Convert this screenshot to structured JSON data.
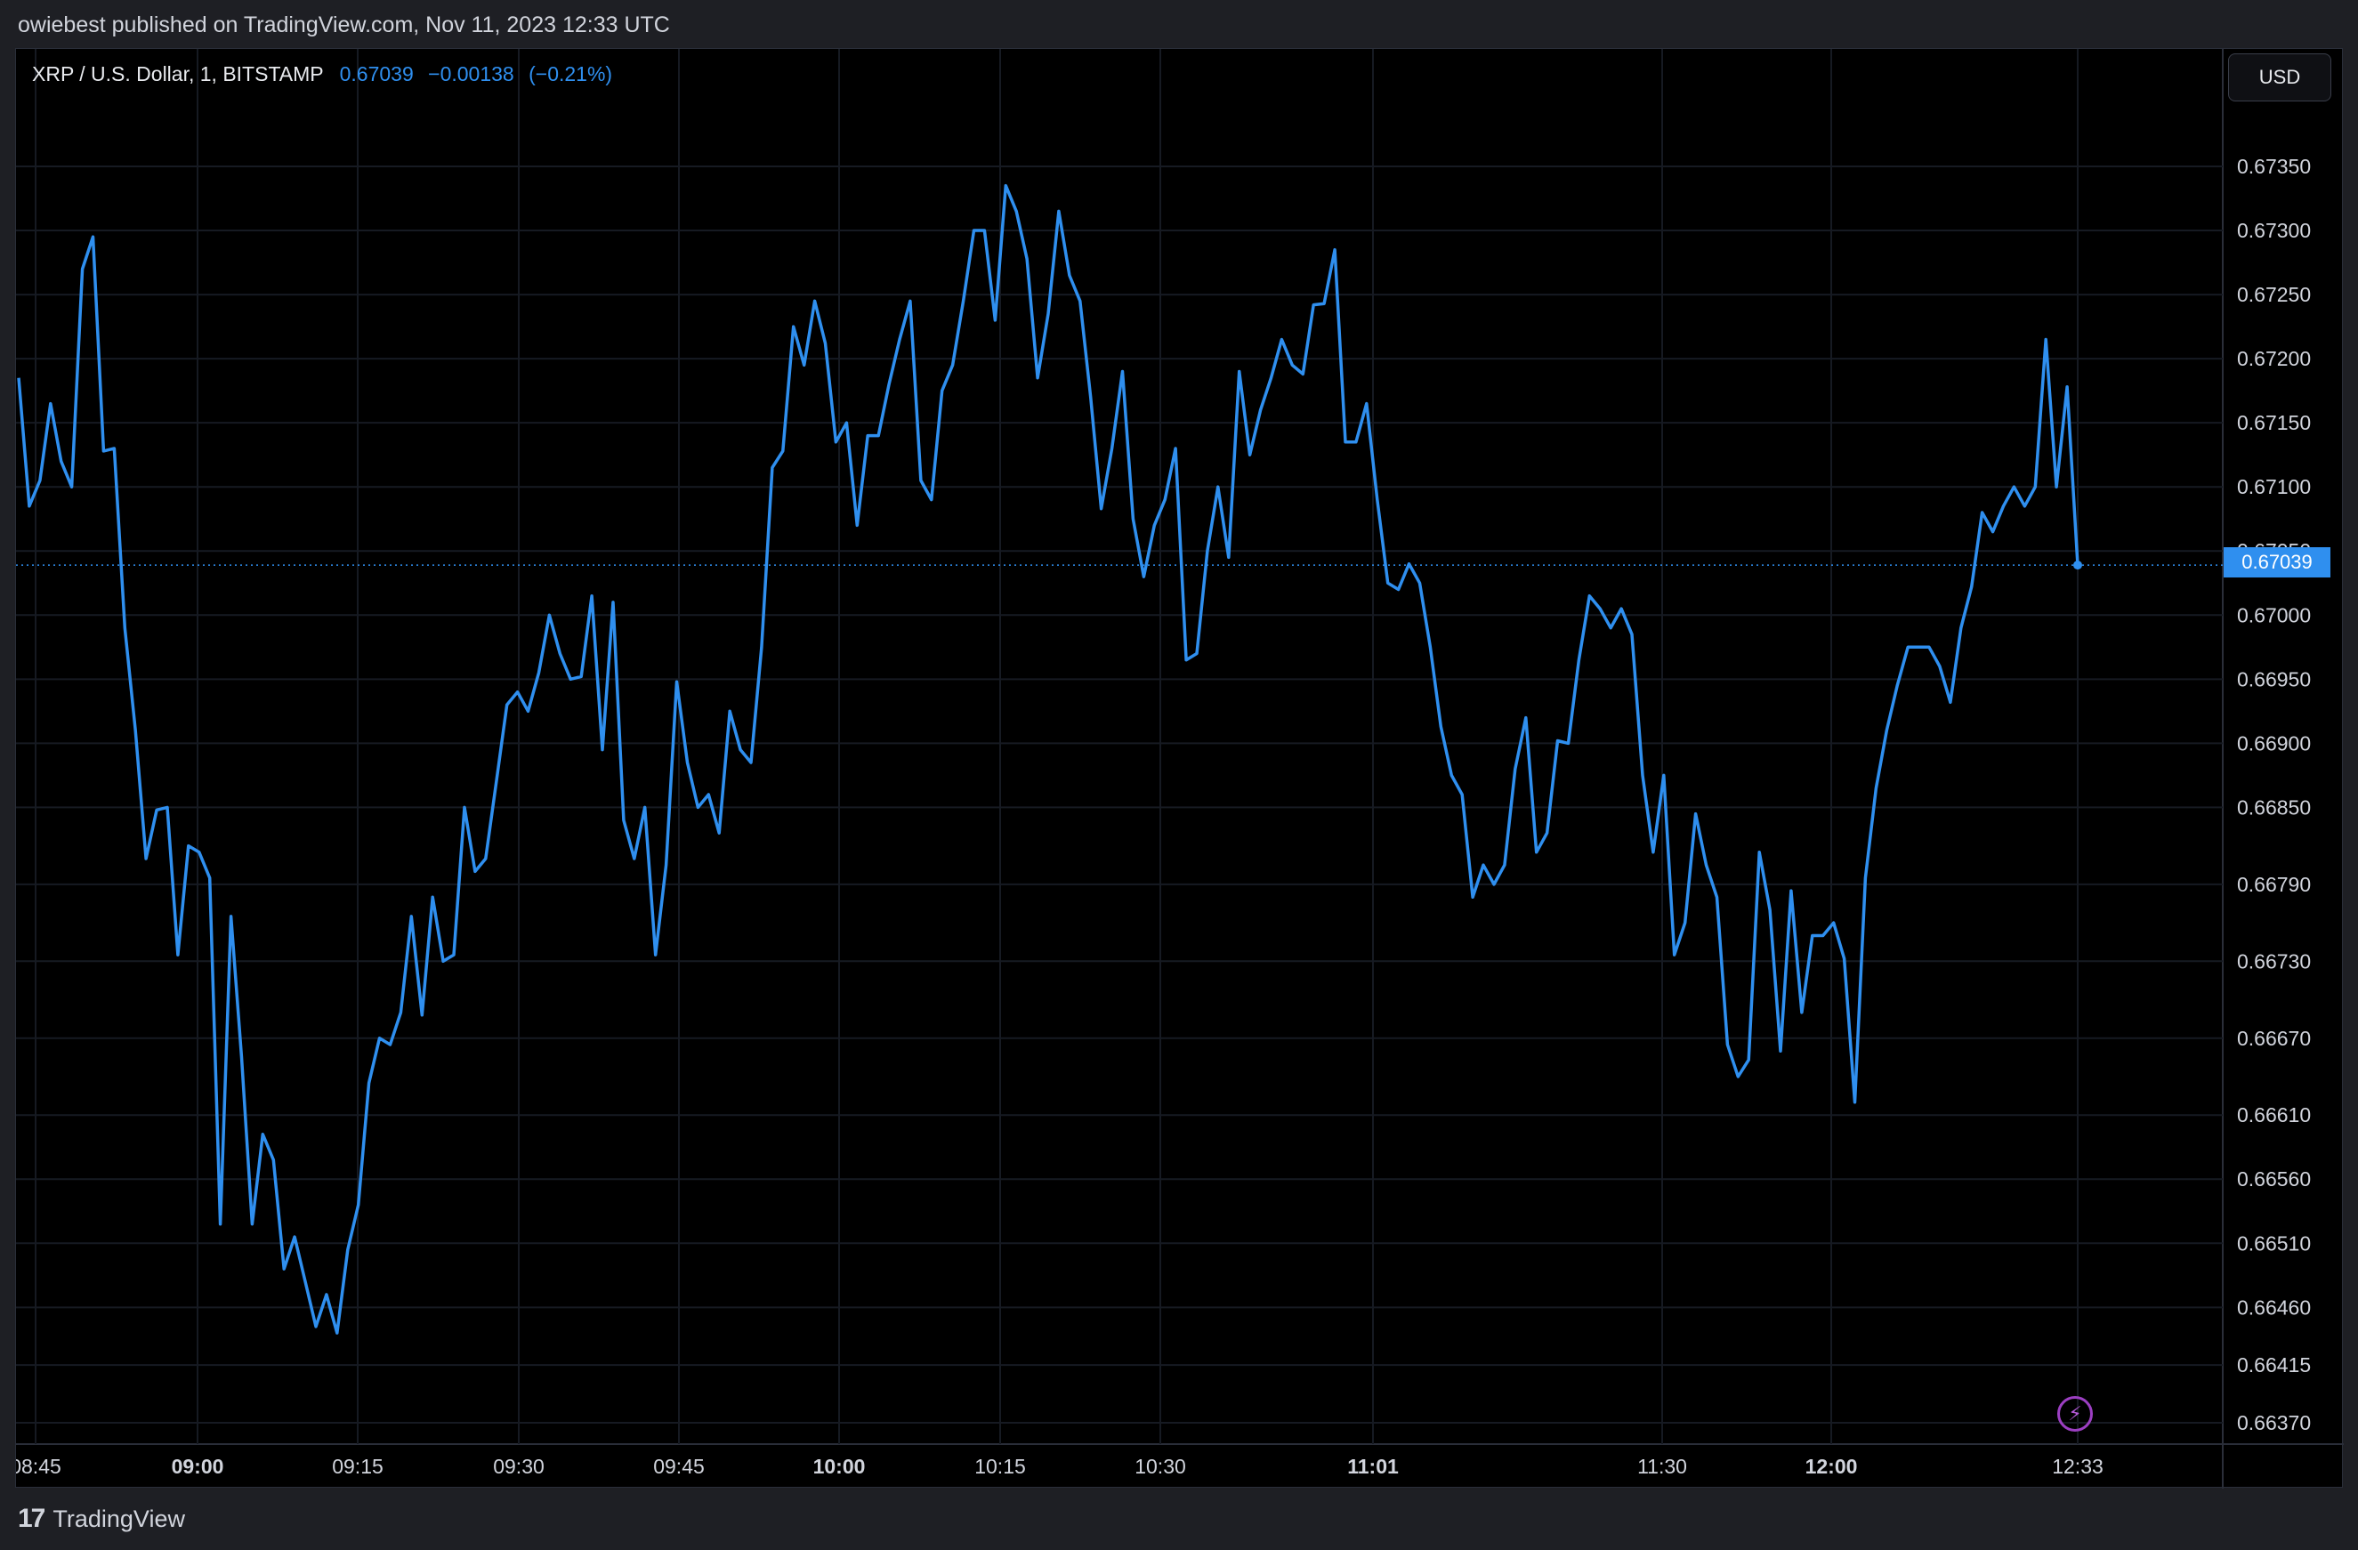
{
  "header": {
    "published_text": "owiebest published on TradingView.com, Nov 11, 2023 12:33 UTC"
  },
  "legend": {
    "symbol": "XRP / U.S. Dollar, 1, BITSTAMP",
    "last": "0.67039",
    "change": "−0.00138",
    "change_pct": "(−0.21%)"
  },
  "currency_button": "USD",
  "last_price_tag": "0.67039",
  "footer": {
    "brand": "TradingView"
  },
  "colors": {
    "line": "#2f8fef",
    "background": "#000000",
    "grid": "#161a22",
    "frame": "#1e1f24"
  },
  "chart_data": {
    "type": "line",
    "title": "",
    "series": [
      {
        "values": [
          0.67185,
          0.67085,
          0.67105,
          0.67165,
          0.6712,
          0.671,
          0.6727,
          0.67295,
          0.67128,
          0.6713,
          0.6699,
          0.6691,
          0.6681,
          0.66848,
          0.6685,
          0.66735,
          0.6682,
          0.66815,
          0.66795,
          0.66525,
          0.66765,
          0.66655,
          0.66525,
          0.66595,
          0.66575,
          0.6649,
          0.66515,
          0.6648,
          0.66445,
          0.6647,
          0.6644,
          0.66505,
          0.6654,
          0.66635,
          0.6667,
          0.66665,
          0.6669,
          0.66765,
          0.66688,
          0.6678,
          0.6673,
          0.66735,
          0.6685,
          0.668,
          0.6681,
          0.6687,
          0.6693,
          0.6694,
          0.66925,
          0.66955,
          0.67,
          0.6697,
          0.6695,
          0.66952,
          0.67015,
          0.66895,
          0.6701,
          0.6684,
          0.6681,
          0.6685,
          0.66735,
          0.66805,
          0.66948,
          0.66885,
          0.6685,
          0.6686,
          0.6683,
          0.66925,
          0.66895,
          0.66885,
          0.66975,
          0.67115,
          0.67128,
          0.67225,
          0.67195,
          0.67245,
          0.67212,
          0.67135,
          0.6715,
          0.6707,
          0.6714,
          0.6714,
          0.6718,
          0.67215,
          0.67245,
          0.67105,
          0.6709,
          0.67175,
          0.67195,
          0.67245,
          0.673,
          0.673,
          0.6723,
          0.67335,
          0.67315,
          0.67278,
          0.67185,
          0.67235,
          0.67315,
          0.67265,
          0.67245,
          0.6717,
          0.67083,
          0.6713,
          0.6719,
          0.67075,
          0.6703,
          0.6707,
          0.6709,
          0.6713,
          0.66965,
          0.6697,
          0.6705,
          0.671,
          0.67045,
          0.6719,
          0.67125,
          0.6716,
          0.67185,
          0.67215,
          0.67195,
          0.67188,
          0.67242,
          0.67243,
          0.67285,
          0.67135,
          0.67135,
          0.67165,
          0.6709,
          0.67025,
          0.6702,
          0.6704,
          0.67025,
          0.66975,
          0.66913,
          0.66875,
          0.6686,
          0.6678,
          0.66805,
          0.6679,
          0.66805,
          0.6688,
          0.6692,
          0.66815,
          0.6683,
          0.66902,
          0.669,
          0.66965,
          0.67015,
          0.67005,
          0.6699,
          0.67005,
          0.66985,
          0.66875,
          0.66815,
          0.66875,
          0.66735,
          0.6676,
          0.66845,
          0.66805,
          0.6678,
          0.66665,
          0.6664,
          0.66653,
          0.66815,
          0.6677,
          0.6666,
          0.66785,
          0.6669,
          0.6675,
          0.6675,
          0.6676,
          0.66732,
          0.6662,
          0.66795,
          0.66865,
          0.6691,
          0.66945,
          0.66975,
          0.66975,
          0.66975,
          0.6696,
          0.66932,
          0.6699,
          0.67022,
          0.6708,
          0.67065,
          0.67085,
          0.671,
          0.67085,
          0.671,
          0.67215,
          0.671,
          0.67178,
          0.67039
        ]
      }
    ],
    "x_ticks": [
      {
        "label": "08:45",
        "bold": false
      },
      {
        "label": "09:00",
        "bold": true
      },
      {
        "label": "09:15",
        "bold": false
      },
      {
        "label": "09:30",
        "bold": false
      },
      {
        "label": "09:45",
        "bold": false
      },
      {
        "label": "10:00",
        "bold": true
      },
      {
        "label": "10:15",
        "bold": false
      },
      {
        "label": "10:30",
        "bold": false
      },
      {
        "label": "11:01",
        "bold": true
      },
      {
        "label": "11:30",
        "bold": false
      },
      {
        "label": "12:00",
        "bold": true
      },
      {
        "label": "12:33",
        "bold": false
      }
    ],
    "y_ticks": [
      "0.67350",
      "0.67300",
      "0.67250",
      "0.67200",
      "0.67150",
      "0.67100",
      "0.67050",
      "0.67000",
      "0.66950",
      "0.66900",
      "0.66850",
      "0.66790",
      "0.66730",
      "0.66670",
      "0.66610",
      "0.66560",
      "0.66510",
      "0.66460",
      "0.66415",
      "0.66370"
    ],
    "last_value": 0.67039,
    "grid": true,
    "axis_position": "right"
  }
}
